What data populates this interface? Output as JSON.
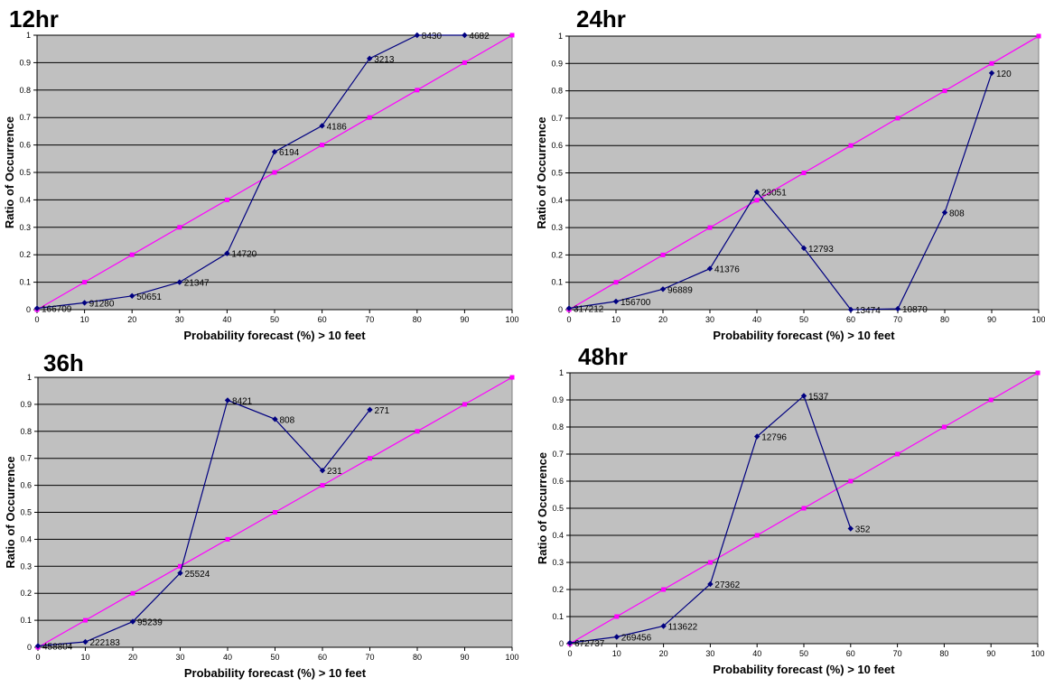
{
  "colors": {
    "plot_bg": "#c0c0c0",
    "gridline": "#000000",
    "observed_line": "#000080",
    "perfect_line": "#ff00ff"
  },
  "chart_data": [
    {
      "type": "line",
      "title": "12hr",
      "xlabel": "Probability forecast (%) > 10 feet",
      "ylabel": "Ratio of Occurrence",
      "xlim": [
        0,
        100
      ],
      "ylim": [
        0,
        1
      ],
      "x_ticks": [
        "0",
        "10",
        "20",
        "30",
        "40",
        "50",
        "60",
        "70",
        "80",
        "90",
        "100"
      ],
      "y_ticks": [
        "0",
        "0.1",
        "0.2",
        "0.3",
        "0.4",
        "0.5",
        "0.6",
        "0.7",
        "0.8",
        "0.9",
        "1"
      ],
      "grid": true,
      "series": [
        {
          "color": "#000080",
          "marker": "diamond",
          "x": [
            0,
            10,
            20,
            30,
            40,
            50,
            60,
            70,
            80,
            90
          ],
          "y": [
            0.005,
            0.025,
            0.05,
            0.1,
            0.205,
            0.575,
            0.67,
            0.915,
            1.0,
            1.0
          ],
          "labels": [
            "166709",
            "91280",
            "50651",
            "21347",
            "14720",
            "6194",
            "4186",
            "3213",
            "8430",
            "4682"
          ]
        },
        {
          "color": "#ff00ff",
          "marker": "square",
          "x": [
            0,
            10,
            20,
            30,
            40,
            50,
            60,
            70,
            80,
            90,
            100
          ],
          "y": [
            0,
            0.1,
            0.2,
            0.3,
            0.4,
            0.5,
            0.6,
            0.7,
            0.8,
            0.9,
            1.0
          ]
        }
      ]
    },
    {
      "type": "line",
      "title": "24hr",
      "xlabel": "Probability forecast (%) > 10 feet",
      "ylabel": "Ratio of Occurrence",
      "xlim": [
        0,
        100
      ],
      "ylim": [
        0,
        1
      ],
      "x_ticks": [
        "0",
        "10",
        "20",
        "30",
        "40",
        "50",
        "60",
        "70",
        "80",
        "90",
        "100"
      ],
      "y_ticks": [
        "0",
        "0.1",
        "0.2",
        "0.3",
        "0.4",
        "0.5",
        "0.6",
        "0.7",
        "0.8",
        "0.9",
        "1"
      ],
      "grid": true,
      "series": [
        {
          "color": "#000080",
          "marker": "diamond",
          "x": [
            0,
            10,
            20,
            30,
            40,
            50,
            60,
            70,
            80,
            90
          ],
          "y": [
            0.005,
            0.03,
            0.075,
            0.15,
            0.43,
            0.225,
            0.0,
            0.003,
            0.355,
            0.865
          ],
          "labels": [
            "317212",
            "156700",
            "96889",
            "41376",
            "23051",
            "12793",
            "13474",
            "10870",
            "808",
            "120"
          ]
        },
        {
          "color": "#ff00ff",
          "marker": "square",
          "x": [
            0,
            10,
            20,
            30,
            40,
            50,
            60,
            70,
            80,
            90,
            100
          ],
          "y": [
            0,
            0.1,
            0.2,
            0.3,
            0.4,
            0.5,
            0.6,
            0.7,
            0.8,
            0.9,
            1.0
          ]
        }
      ]
    },
    {
      "type": "line",
      "title": "36h",
      "xlabel": "Probability forecast (%) > 10 feet",
      "ylabel": "Ratio of Occurrence",
      "xlim": [
        0,
        100
      ],
      "ylim": [
        0,
        1
      ],
      "x_ticks": [
        "0",
        "10",
        "20",
        "30",
        "40",
        "50",
        "60",
        "70",
        "80",
        "90",
        "100"
      ],
      "y_ticks": [
        "0",
        "0.1",
        "0.2",
        "0.3",
        "0.4",
        "0.5",
        "0.6",
        "0.7",
        "0.8",
        "0.9",
        "1"
      ],
      "grid": true,
      "series": [
        {
          "color": "#000080",
          "marker": "diamond",
          "x": [
            0,
            10,
            20,
            30,
            40,
            50,
            60,
            70
          ],
          "y": [
            0.005,
            0.02,
            0.095,
            0.275,
            0.915,
            0.845,
            0.655,
            0.88
          ],
          "labels": [
            "458804",
            "222183",
            "95239",
            "25524",
            "8421",
            "808",
            "231",
            "271"
          ]
        },
        {
          "color": "#ff00ff",
          "marker": "square",
          "x": [
            0,
            10,
            20,
            30,
            40,
            50,
            60,
            70,
            80,
            90,
            100
          ],
          "y": [
            0,
            0.1,
            0.2,
            0.3,
            0.4,
            0.5,
            0.6,
            0.7,
            0.8,
            0.9,
            1.0
          ]
        }
      ]
    },
    {
      "type": "line",
      "title": "48hr",
      "xlabel": "Probability forecast (%) > 10 feet",
      "ylabel": "Ratio of Occurrence",
      "xlim": [
        0,
        100
      ],
      "ylim": [
        0,
        1
      ],
      "x_ticks": [
        "0",
        "10",
        "20",
        "30",
        "40",
        "50",
        "60",
        "70",
        "80",
        "90",
        "100"
      ],
      "y_ticks": [
        "0",
        "0.1",
        "0.2",
        "0.3",
        "0.4",
        "0.5",
        "0.6",
        "0.7",
        "0.8",
        "0.9",
        "1"
      ],
      "grid": true,
      "series": [
        {
          "color": "#000080",
          "marker": "diamond",
          "x": [
            0,
            10,
            20,
            30,
            40,
            50,
            60
          ],
          "y": [
            0.003,
            0.025,
            0.065,
            0.22,
            0.765,
            0.915,
            0.425
          ],
          "labels": [
            "672737",
            "269456",
            "113622",
            "27362",
            "12796",
            "1537",
            "352"
          ]
        },
        {
          "color": "#ff00ff",
          "marker": "square",
          "x": [
            0,
            10,
            20,
            30,
            40,
            50,
            60,
            70,
            80,
            90,
            100
          ],
          "y": [
            0,
            0.1,
            0.2,
            0.3,
            0.4,
            0.5,
            0.6,
            0.7,
            0.8,
            0.9,
            1.0
          ]
        }
      ]
    }
  ]
}
